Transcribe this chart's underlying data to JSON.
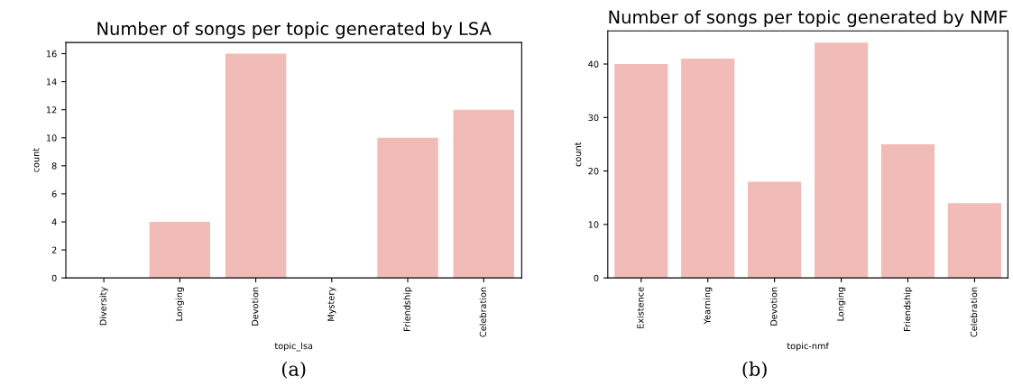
{
  "chart_data": [
    {
      "type": "bar",
      "title": "Number of songs per topic generated by LSA",
      "xlabel": "topic_lsa",
      "ylabel": "count",
      "categories": [
        "Diversity",
        "Longing",
        "Devotion",
        "Mystery",
        "Friendship",
        "Celebration"
      ],
      "values": [
        0,
        4,
        16,
        0,
        10,
        12
      ],
      "color": "#f1bbb8",
      "ylim": [
        0,
        16.8
      ],
      "yticks": [
        0,
        2,
        4,
        6,
        8,
        10,
        12,
        14,
        16
      ],
      "grid": false,
      "annotations": [
        "(a)"
      ]
    },
    {
      "type": "bar",
      "title": "Number of songs per topic generated by NMF",
      "xlabel": "topic-nmf",
      "ylabel": "count",
      "categories": [
        "Existence",
        "Yearning",
        "Devotion",
        "Longing",
        "Friendship",
        "Celebration"
      ],
      "values": [
        40,
        41,
        18,
        44,
        25,
        14
      ],
      "color": "#f1bbb8",
      "ylim": [
        0,
        46.2
      ],
      "yticks": [
        0,
        10,
        20,
        30,
        40
      ],
      "grid": false,
      "annotations": [
        "(b)"
      ]
    }
  ]
}
